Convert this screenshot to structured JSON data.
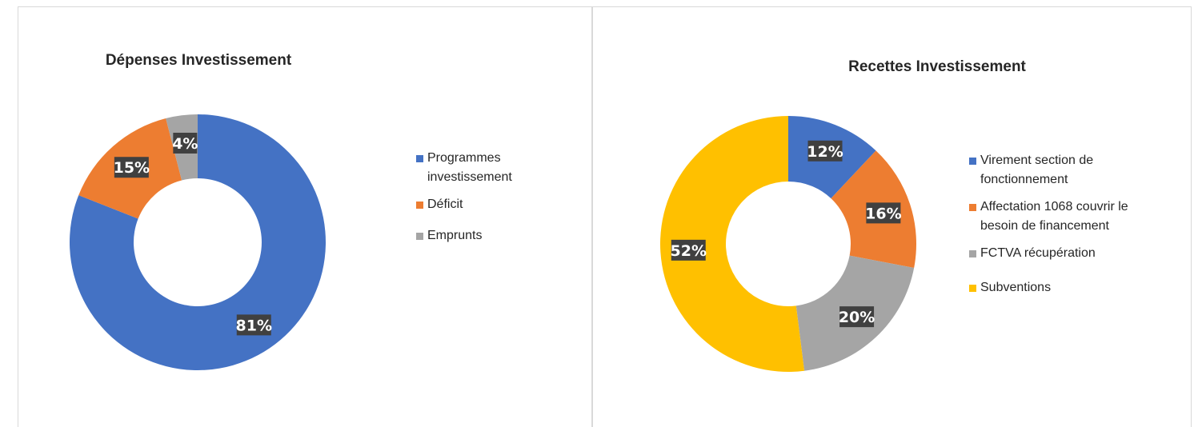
{
  "chart_data": [
    {
      "type": "pie",
      "subtype": "donut",
      "title": "Dépenses Investissement",
      "categories": [
        "Programmes investissement",
        "Déficit",
        "Emprunts"
      ],
      "values": [
        81,
        15,
        4
      ],
      "labels": [
        "81%",
        "15%",
        "4%"
      ],
      "colors": [
        "#4472c4",
        "#ed7d31",
        "#a5a5a5"
      ],
      "legend": {
        "position": "right",
        "items": [
          {
            "lines": [
              "Programmes",
              "investissement"
            ]
          },
          {
            "lines": [
              "Déficit"
            ]
          },
          {
            "lines": [
              "Emprunts"
            ]
          }
        ]
      }
    },
    {
      "type": "pie",
      "subtype": "donut",
      "title": "Recettes Investissement",
      "categories": [
        "Virement section de fonctionnement",
        "Affectation 1068 couvrir le besoin de financement",
        "FCTVA récupération",
        "Subventions"
      ],
      "values": [
        12,
        16,
        20,
        52
      ],
      "labels": [
        "12%",
        "16%",
        "20%",
        "52%"
      ],
      "colors": [
        "#4472c4",
        "#ed7d31",
        "#a5a5a5",
        "#ffc000"
      ],
      "legend": {
        "position": "right",
        "items": [
          {
            "lines": [
              "Virement section de",
              "fonctionnement"
            ]
          },
          {
            "lines": [
              "Affectation 1068 couvrir le",
              "besoin de financement"
            ]
          },
          {
            "lines": [
              "FCTVA récupération"
            ]
          },
          {
            "lines": [
              "Subventions"
            ]
          }
        ]
      }
    }
  ]
}
